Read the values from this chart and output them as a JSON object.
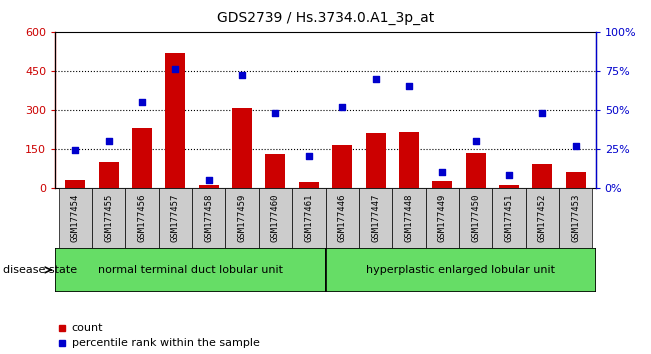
{
  "title": "GDS2739 / Hs.3734.0.A1_3p_at",
  "samples": [
    "GSM177454",
    "GSM177455",
    "GSM177456",
    "GSM177457",
    "GSM177458",
    "GSM177459",
    "GSM177460",
    "GSM177461",
    "GSM177446",
    "GSM177447",
    "GSM177448",
    "GSM177449",
    "GSM177450",
    "GSM177451",
    "GSM177452",
    "GSM177453"
  ],
  "counts": [
    30,
    100,
    230,
    520,
    10,
    305,
    130,
    20,
    165,
    210,
    215,
    25,
    135,
    10,
    90,
    60
  ],
  "percentiles": [
    24,
    30,
    55,
    76,
    5,
    72,
    48,
    20,
    52,
    70,
    65,
    10,
    30,
    8,
    48,
    27
  ],
  "group1_label": "normal terminal duct lobular unit",
  "group2_label": "hyperplastic enlarged lobular unit",
  "group1_count": 8,
  "group2_count": 8,
  "bar_color": "#cc0000",
  "dot_color": "#0000cc",
  "ylim_left": [
    0,
    600
  ],
  "ylim_right": [
    0,
    100
  ],
  "yticks_left": [
    0,
    150,
    300,
    450,
    600
  ],
  "yticks_right": [
    0,
    25,
    50,
    75,
    100
  ],
  "ytick_labels_right": [
    "0%",
    "25%",
    "50%",
    "75%",
    "100%"
  ],
  "grid_values": [
    150,
    300,
    450
  ],
  "group_color": "#66dd66",
  "xtick_bg_color": "#cccccc"
}
